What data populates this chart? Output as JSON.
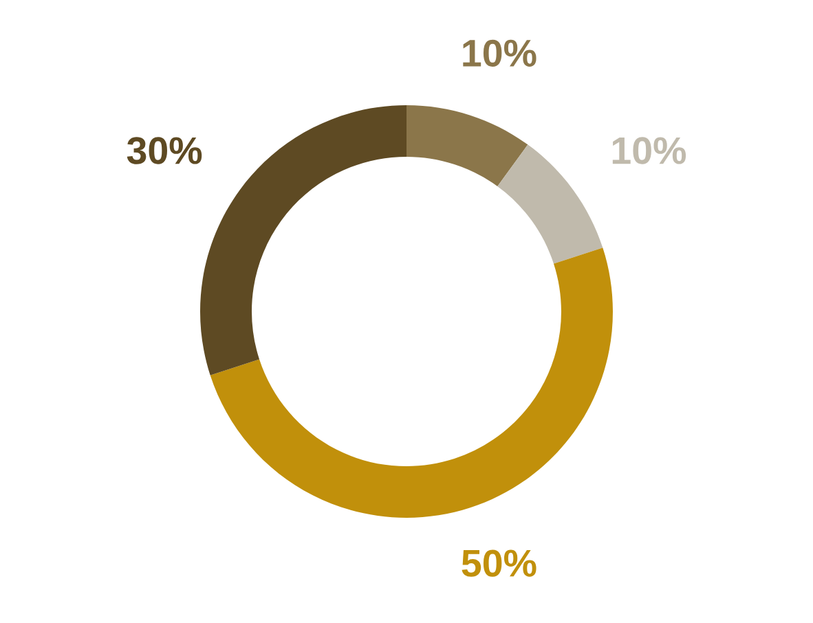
{
  "chart_data": {
    "type": "donut",
    "categories": [
      null,
      null,
      null,
      null
    ],
    "values": [
      10,
      10,
      50,
      30
    ],
    "colors": [
      "#8b764a",
      "#c0baac",
      "#c1900b",
      "#5e4a23"
    ],
    "value_labels": [
      "10%",
      "10%",
      "50%",
      "30%"
    ]
  }
}
